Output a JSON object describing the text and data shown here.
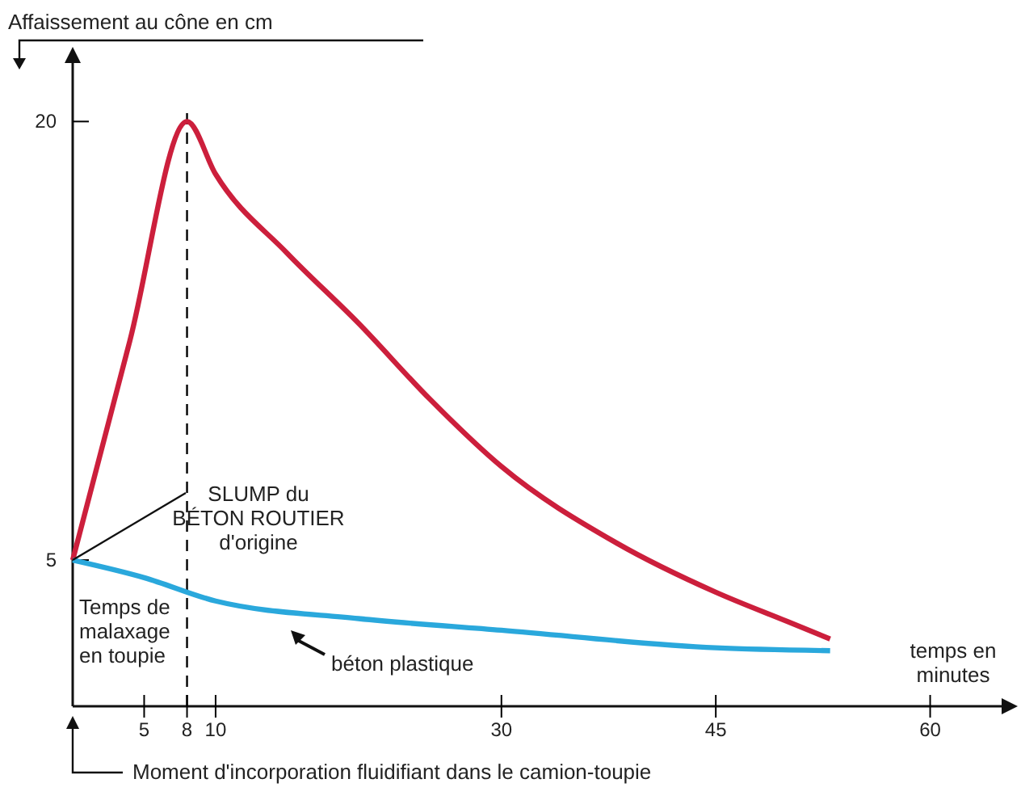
{
  "chart_data": {
    "type": "line",
    "xlabel": "temps en\nminutes",
    "ylabel": "Affaissement au cône en cm",
    "xlim": [
      0,
      65
    ],
    "ylim": [
      0,
      22
    ],
    "xticks": [
      5,
      8,
      10,
      30,
      45,
      60
    ],
    "yticks": [
      5,
      20
    ],
    "grid": false,
    "marker": "none",
    "line_style": "solid",
    "series": [
      {
        "color": "#cc1f3c",
        "x": [
          0,
          4,
          8,
          10,
          15,
          20,
          25,
          30,
          38,
          45,
          50,
          53
        ],
        "values": [
          5,
          12.5,
          20,
          18.2,
          15.5,
          13.1,
          10.5,
          8.2,
          5.6,
          3.9,
          2.9,
          2.3
        ]
      },
      {
        "color": "#2aa8dc",
        "x": [
          0,
          5,
          10,
          20,
          30,
          45,
          53
        ],
        "values": [
          5,
          4.4,
          3.6,
          3.0,
          2.6,
          2.0,
          1.9
        ]
      }
    ],
    "ref_lines": [
      {
        "axis": "x",
        "value": 8,
        "color": "#000000",
        "line_style": "dashed"
      }
    ],
    "annotations": [
      {
        "text": "SLUMP du\nBÉTON ROUTIER\nd'origine",
        "x": 0,
        "y": 5
      },
      "Temps de\nmalaxage\nen toupie",
      "béton plastique",
      "Moment d'incorporation fluidifiant dans le camion-toupie"
    ]
  }
}
